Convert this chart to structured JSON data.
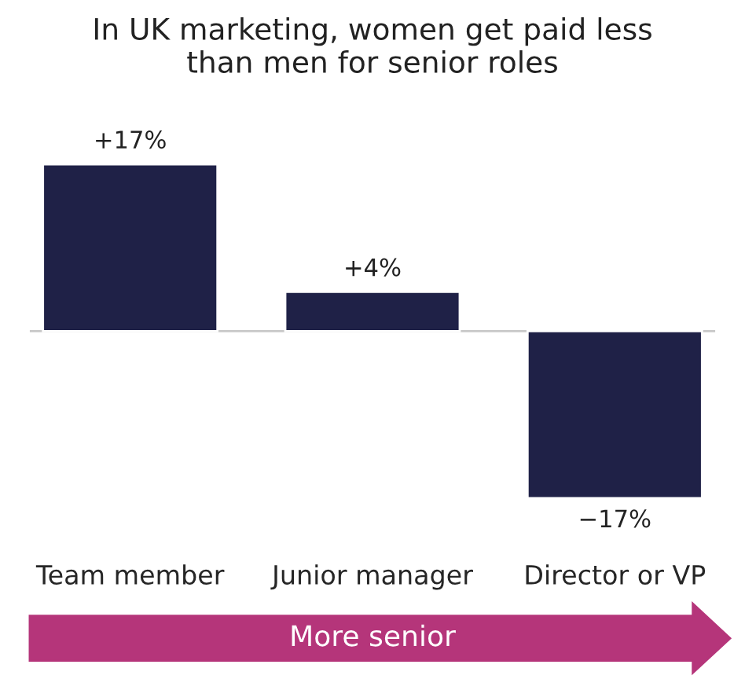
{
  "chart_data": {
    "type": "bar",
    "title": "In UK marketing, women get paid less\nthan men for senior roles",
    "categories": [
      "Team member",
      "Junior manager",
      "Director or VP"
    ],
    "values": [
      17,
      4,
      -17
    ],
    "color": "#1f2147",
    "value_labels": [
      "+17%",
      "+4%",
      "−17%"
    ],
    "annotations": [
      "More senior"
    ],
    "grid": false,
    "legend": false
  }
}
